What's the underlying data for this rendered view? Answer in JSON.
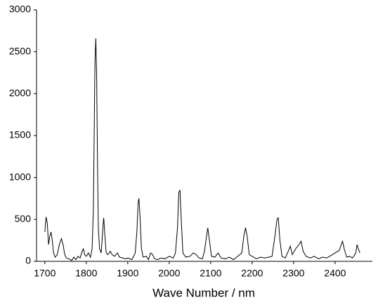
{
  "chart_data": {
    "type": "line",
    "x_label": "Wave Number / nm",
    "xlim": [
      1680,
      2490
    ],
    "ylim": [
      0,
      3000
    ],
    "xticks": [
      1700,
      1800,
      1900,
      2000,
      2100,
      2200,
      2300,
      2400
    ],
    "yticks": [
      0,
      500,
      1000,
      1500,
      2000,
      2500,
      3000
    ],
    "x": [
      1700,
      1703,
      1706,
      1709,
      1712,
      1715,
      1718,
      1721,
      1725,
      1730,
      1735,
      1740,
      1744,
      1748,
      1752,
      1758,
      1765,
      1770,
      1775,
      1780,
      1785,
      1790,
      1793,
      1796,
      1800,
      1805,
      1810,
      1814,
      1817,
      1819,
      1821,
      1823,
      1825,
      1827,
      1829,
      1832,
      1836,
      1840,
      1842,
      1845,
      1848,
      1852,
      1858,
      1862,
      1868,
      1875,
      1880,
      1888,
      1895,
      1900,
      1910,
      1918,
      1922,
      1925,
      1927,
      1930,
      1933,
      1937,
      1945,
      1950,
      1955,
      1960,
      1965,
      1972,
      1980,
      1990,
      2000,
      2010,
      2015,
      2020,
      2023,
      2026,
      2029,
      2033,
      2040,
      2050,
      2058,
      2065,
      2072,
      2080,
      2085,
      2090,
      2093,
      2097,
      2102,
      2110,
      2118,
      2125,
      2135,
      2145,
      2155,
      2165,
      2175,
      2180,
      2184,
      2188,
      2193,
      2200,
      2210,
      2220,
      2230,
      2240,
      2248,
      2255,
      2260,
      2263,
      2267,
      2272,
      2280,
      2287,
      2292,
      2297,
      2305,
      2313,
      2318,
      2323,
      2330,
      2340,
      2350,
      2360,
      2370,
      2380,
      2390,
      2400,
      2410,
      2415,
      2418,
      2422,
      2428,
      2435,
      2442,
      2450,
      2453,
      2456,
      2460
    ],
    "series": [
      {
        "color": "#000000",
        "values": [
          350,
          530,
          450,
          200,
          300,
          350,
          250,
          100,
          50,
          80,
          200,
          270,
          200,
          80,
          40,
          30,
          10,
          50,
          20,
          60,
          40,
          120,
          150,
          80,
          60,
          100,
          50,
          150,
          600,
          1500,
          2400,
          2660,
          2200,
          1200,
          400,
          150,
          100,
          400,
          520,
          300,
          100,
          80,
          120,
          80,
          60,
          100,
          50,
          40,
          30,
          40,
          20,
          100,
          350,
          700,
          750,
          500,
          150,
          50,
          60,
          20,
          100,
          80,
          30,
          20,
          40,
          30,
          60,
          40,
          100,
          400,
          820,
          850,
          500,
          100,
          50,
          60,
          100,
          80,
          40,
          30,
          120,
          300,
          400,
          250,
          60,
          50,
          100,
          40,
          30,
          50,
          20,
          60,
          100,
          300,
          400,
          300,
          80,
          60,
          30,
          50,
          40,
          50,
          60,
          300,
          500,
          520,
          250,
          60,
          40,
          120,
          180,
          80,
          150,
          200,
          240,
          120,
          60,
          40,
          60,
          30,
          50,
          40,
          70,
          100,
          130,
          200,
          240,
          150,
          50,
          60,
          40,
          100,
          200,
          150,
          100
        ]
      }
    ]
  }
}
